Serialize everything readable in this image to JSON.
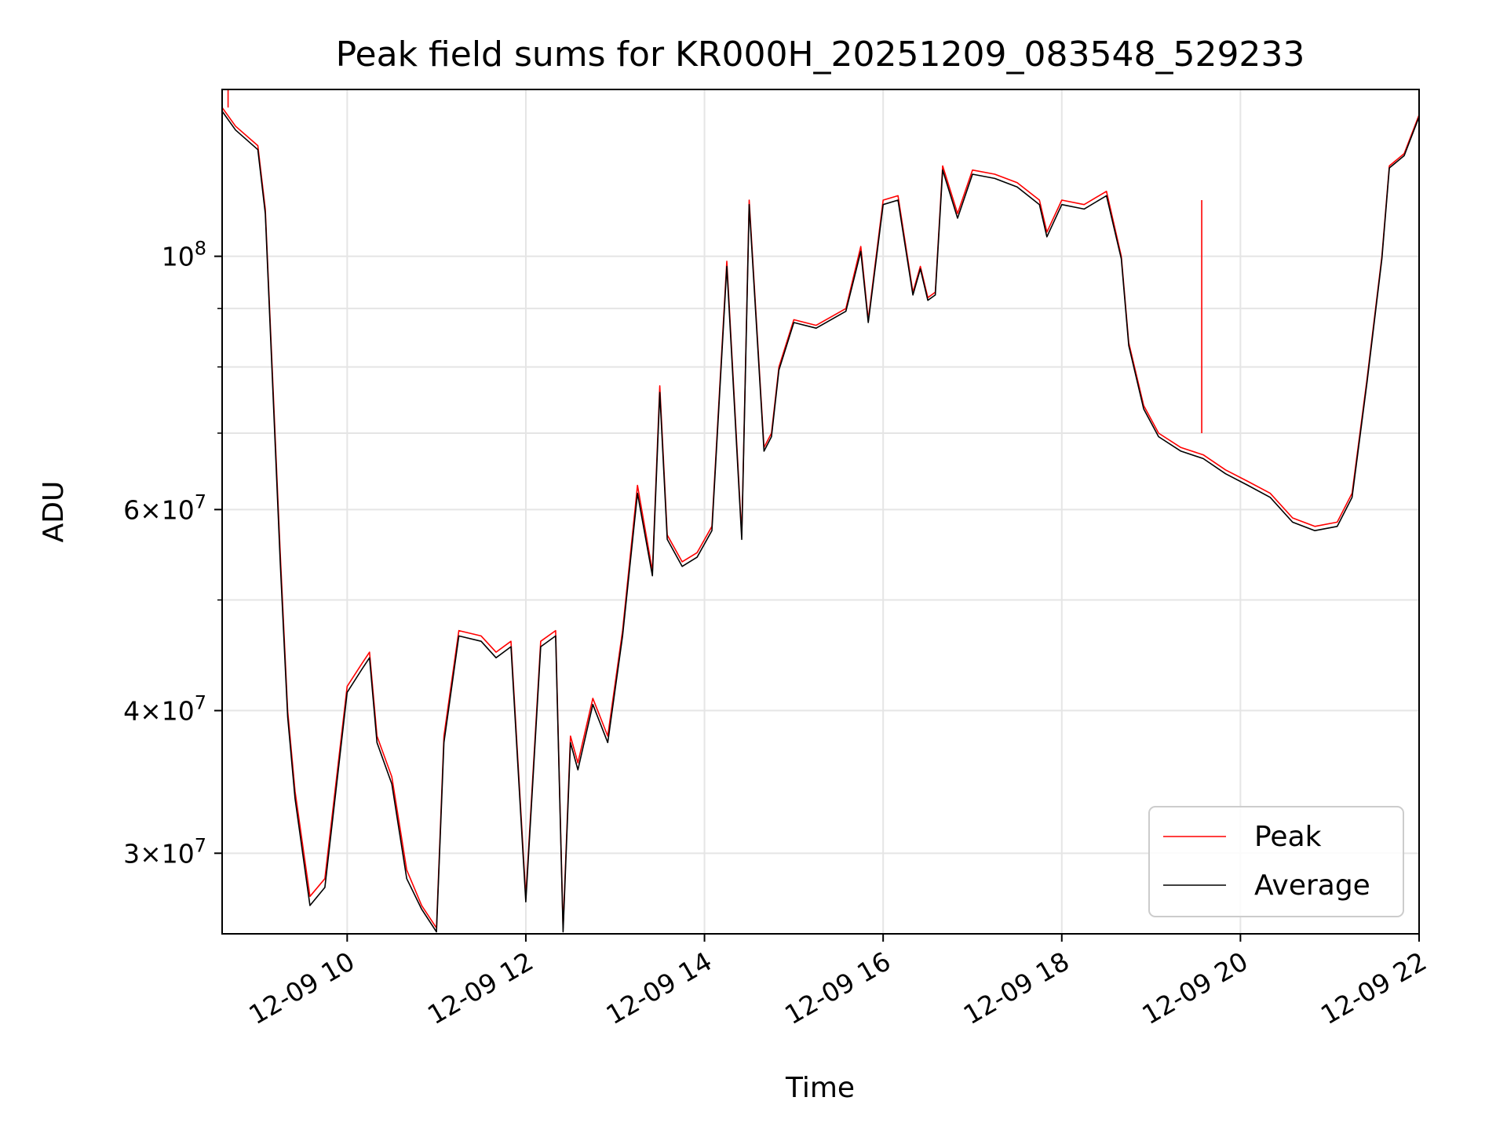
{
  "chart_data": {
    "type": "line",
    "title": "Peak field sums for KR000H_20251209_083548_529233",
    "xlabel": "Time",
    "ylabel": "ADU",
    "yscale": "log",
    "xlim": [
      "2025-12-09 08:36",
      "2025-12-09 22:00"
    ],
    "ylim": [
      25500000,
      140000000
    ],
    "x_ticks": [
      {
        "value": "2025-12-09 10:00",
        "label": "12-09 10"
      },
      {
        "value": "2025-12-09 12:00",
        "label": "12-09 12"
      },
      {
        "value": "2025-12-09 14:00",
        "label": "12-09 14"
      },
      {
        "value": "2025-12-09 16:00",
        "label": "12-09 16"
      },
      {
        "value": "2025-12-09 18:00",
        "label": "12-09 18"
      },
      {
        "value": "2025-12-09 20:00",
        "label": "12-09 20"
      },
      {
        "value": "2025-12-09 22:00",
        "label": "12-09 22"
      }
    ],
    "y_ticks": [
      {
        "value": 30000000,
        "base": "3",
        "exp": "7"
      },
      {
        "value": 40000000,
        "base": "4",
        "exp": "7"
      },
      {
        "value": 60000000,
        "base": "6",
        "exp": "7"
      },
      {
        "value": 100000000,
        "base": "",
        "exp": "8"
      }
    ],
    "y_minor_ticks": [
      50000000,
      70000000,
      80000000,
      90000000
    ],
    "grid": true,
    "legend": "lower-right",
    "colors": {
      "peak": "#ff0000",
      "average": "#000000"
    },
    "x": [
      "2025-12-09 08:36",
      "2025-12-09 08:45",
      "2025-12-09 09:00",
      "2025-12-09 09:05",
      "2025-12-09 09:15",
      "2025-12-09 09:20",
      "2025-12-09 09:25",
      "2025-12-09 09:35",
      "2025-12-09 09:45",
      "2025-12-09 10:00",
      "2025-12-09 10:10",
      "2025-12-09 10:15",
      "2025-12-09 10:20",
      "2025-12-09 10:30",
      "2025-12-09 10:40",
      "2025-12-09 10:50",
      "2025-12-09 11:00",
      "2025-12-09 11:05",
      "2025-12-09 11:15",
      "2025-12-09 11:30",
      "2025-12-09 11:40",
      "2025-12-09 11:50",
      "2025-12-09 12:00",
      "2025-12-09 12:10",
      "2025-12-09 12:20",
      "2025-12-09 12:25",
      "2025-12-09 12:30",
      "2025-12-09 12:35",
      "2025-12-09 12:45",
      "2025-12-09 12:55",
      "2025-12-09 13:05",
      "2025-12-09 13:15",
      "2025-12-09 13:25",
      "2025-12-09 13:30",
      "2025-12-09 13:35",
      "2025-12-09 13:45",
      "2025-12-09 13:55",
      "2025-12-09 14:05",
      "2025-12-09 14:15",
      "2025-12-09 14:25",
      "2025-12-09 14:30",
      "2025-12-09 14:40",
      "2025-12-09 14:45",
      "2025-12-09 14:50",
      "2025-12-09 15:00",
      "2025-12-09 15:15",
      "2025-12-09 15:35",
      "2025-12-09 15:45",
      "2025-12-09 15:50",
      "2025-12-09 16:00",
      "2025-12-09 16:10",
      "2025-12-09 16:20",
      "2025-12-09 16:25",
      "2025-12-09 16:30",
      "2025-12-09 16:35",
      "2025-12-09 16:40",
      "2025-12-09 16:50",
      "2025-12-09 17:00",
      "2025-12-09 17:15",
      "2025-12-09 17:30",
      "2025-12-09 17:45",
      "2025-12-09 17:50",
      "2025-12-09 18:00",
      "2025-12-09 18:15",
      "2025-12-09 18:30",
      "2025-12-09 18:40",
      "2025-12-09 18:45",
      "2025-12-09 18:55",
      "2025-12-09 19:05",
      "2025-12-09 19:20",
      "2025-12-09 19:35",
      "2025-12-09 19:50",
      "2025-12-09 20:05",
      "2025-12-09 20:20",
      "2025-12-09 20:35",
      "2025-12-09 20:50",
      "2025-12-09 21:05",
      "2025-12-09 21:15",
      "2025-12-09 21:25",
      "2025-12-09 21:35",
      "2025-12-09 21:40",
      "2025-12-09 21:50",
      "2025-12-09 22:00"
    ],
    "series": [
      {
        "name": "Peak",
        "values": [
          135000000,
          130000000,
          125000000,
          110000000,
          55000000,
          40000000,
          34000000,
          27500000,
          28500000,
          42000000,
          44000000,
          45000000,
          38000000,
          35000000,
          29000000,
          27000000,
          25800000,
          38000000,
          47000000,
          46500000,
          45000000,
          46000000,
          27500000,
          46000000,
          47000000,
          25800000,
          38000000,
          36000000,
          41000000,
          38000000,
          47000000,
          63000000,
          53000000,
          77000000,
          57000000,
          54000000,
          55000000,
          58000000,
          99000000,
          57000000,
          112000000,
          68000000,
          70000000,
          80000000,
          88000000,
          87000000,
          90000000,
          102000000,
          88000000,
          112000000,
          113000000,
          93000000,
          98000000,
          92000000,
          93000000,
          120000000,
          109000000,
          119000000,
          118000000,
          116000000,
          112000000,
          105000000,
          112000000,
          111000000,
          114000000,
          100000000,
          84000000,
          74000000,
          70000000,
          68000000,
          67000000,
          65000000,
          63500000,
          62000000,
          59000000,
          58000000,
          58500000,
          62000000,
          78000000,
          100000000,
          120000000,
          123000000,
          133000000
        ]
      },
      {
        "name": "Average",
        "values": [
          134000000,
          129000000,
          124000000,
          109000000,
          54000000,
          39500000,
          33500000,
          27000000,
          28000000,
          41500000,
          43500000,
          44500000,
          37500000,
          34500000,
          28500000,
          26800000,
          25600000,
          37500000,
          46500000,
          46000000,
          44500000,
          45500000,
          27200000,
          45500000,
          46500000,
          25600000,
          37500000,
          35500000,
          40500000,
          37500000,
          46500000,
          62000000,
          52500000,
          76000000,
          56500000,
          53500000,
          54500000,
          57500000,
          98000000,
          56500000,
          111000000,
          67500000,
          69500000,
          79500000,
          87500000,
          86500000,
          89500000,
          101000000,
          87500000,
          111000000,
          112000000,
          92500000,
          97500000,
          91500000,
          92500000,
          119000000,
          108000000,
          118000000,
          117000000,
          115000000,
          111000000,
          104000000,
          111000000,
          110000000,
          113000000,
          99500000,
          83500000,
          73500000,
          69500000,
          67500000,
          66500000,
          64500000,
          63000000,
          61500000,
          58500000,
          57500000,
          58000000,
          61500000,
          77500000,
          99500000,
          119500000,
          122500000,
          132500000
        ]
      }
    ],
    "annotations": [
      {
        "series": "Peak",
        "x": "2025-12-09 08:40",
        "value": 140000000
      },
      {
        "series": "Peak",
        "x": "2025-12-09 19:34",
        "value": 112000000
      }
    ]
  }
}
